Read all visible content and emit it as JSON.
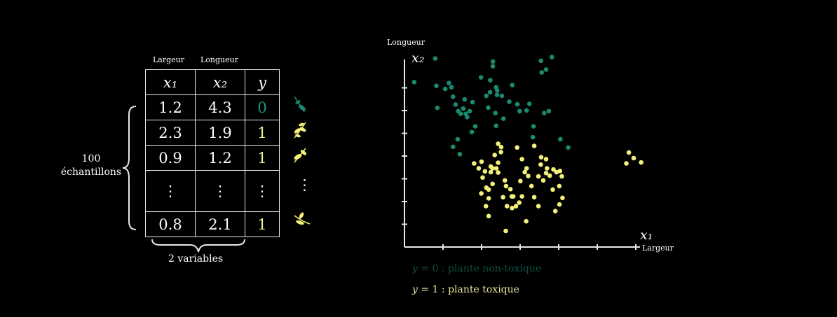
{
  "table": {
    "col_labels": [
      "Largeur",
      "Longueur"
    ],
    "headers": [
      "x₁",
      "x₂",
      "y"
    ],
    "rows": [
      [
        "1.2",
        "4.3",
        "0"
      ],
      [
        "2.3",
        "1.9",
        "1"
      ],
      [
        "0.9",
        "1.2",
        "1"
      ],
      [
        "⋮",
        "⋮",
        "⋮"
      ],
      [
        "0.8",
        "2.1",
        "1"
      ]
    ],
    "row_icons": [
      "leaf-dark-icon",
      "leaf-yellow-icon",
      "leaf-yellow-icon",
      "vertical-dots",
      "leaf-yellow-icon"
    ],
    "extra_dots": "⋮"
  },
  "samples_label": {
    "line1": "100",
    "line2": "échantillons"
  },
  "variables_label": "2 variables",
  "colors": {
    "class0": "#1a8a70",
    "class1": "#f4f07a",
    "axis": "#e8e8e8"
  },
  "chart_data": {
    "type": "scatter",
    "ylabel_word": "Longueur",
    "ylabel_symbol": "x₂",
    "xlabel_word": "Largeur",
    "xlabel_symbol": "x₁",
    "x_ticks": 6,
    "y_ticks": 7,
    "xlim": [
      0,
      10
    ],
    "ylim": [
      0,
      7.7
    ],
    "series": [
      {
        "points": [
          [
            0.42,
            6.98
          ],
          [
            1.33,
            7.98
          ],
          [
            1.38,
            6.82
          ],
          [
            1.42,
            5.89
          ],
          [
            1.76,
            6.69
          ],
          [
            1.92,
            6.94
          ],
          [
            2.03,
            6.76
          ],
          [
            2.1,
            6.36
          ],
          [
            2.21,
            6.03
          ],
          [
            2.32,
            5.75
          ],
          [
            2.43,
            5.64
          ],
          [
            2.54,
            5.86
          ],
          [
            2.6,
            6.25
          ],
          [
            2.65,
            5.64
          ],
          [
            2.71,
            5.5
          ],
          [
            2.82,
            5.75
          ],
          [
            2.94,
            6.13
          ],
          [
            3.06,
            5.11
          ],
          [
            2.3,
            4.56
          ],
          [
            2.1,
            4.24
          ],
          [
            2.39,
            3.93
          ],
          [
            2.91,
            4.87
          ],
          [
            3.31,
            7.18
          ],
          [
            3.71,
            7.06
          ],
          [
            3.82,
            7.65
          ],
          [
            3.7,
            6.55
          ],
          [
            3.54,
            6.4
          ],
          [
            3.62,
            5.9
          ],
          [
            3.93,
            5.67
          ],
          [
            4.0,
            6.44
          ],
          [
            4.01,
            6.63
          ],
          [
            4.21,
            6.4
          ],
          [
            4.28,
            5.43
          ],
          [
            3.96,
            5.13
          ],
          [
            3.96,
            6.76
          ],
          [
            3.82,
            7.85
          ],
          [
            4.53,
            6.15
          ],
          [
            4.66,
            6.85
          ],
          [
            4.88,
            6.04
          ],
          [
            4.98,
            5.75
          ],
          [
            5.28,
            5.78
          ],
          [
            5.4,
            6.06
          ],
          [
            5.58,
            5.11
          ],
          [
            5.55,
            4.65
          ],
          [
            5.9,
            7.88
          ],
          [
            5.93,
            7.39
          ],
          [
            6.04,
            5.67
          ],
          [
            6.24,
            5.75
          ],
          [
            6.12,
            7.51
          ],
          [
            6.37,
            8.04
          ],
          [
            6.74,
            4.56
          ],
          [
            7.08,
            4.21
          ]
        ]
      },
      {
        "points": [
          [
            3.01,
            3.54
          ],
          [
            3.33,
            3.61
          ],
          [
            3.38,
            2.94
          ],
          [
            3.32,
            2.27
          ],
          [
            3.54,
            2.51
          ],
          [
            3.64,
            2.43
          ],
          [
            3.73,
            3.17
          ],
          [
            3.81,
            2.67
          ],
          [
            3.81,
            3.33
          ],
          [
            3.9,
            3.89
          ],
          [
            4.05,
            3.57
          ],
          [
            3.52,
            1.73
          ],
          [
            3.64,
            1.31
          ],
          [
            3.73,
            3.41
          ],
          [
            3.97,
            3.33
          ],
          [
            4.05,
            4.37
          ],
          [
            4.17,
            4.02
          ],
          [
            4.26,
            2.11
          ],
          [
            4.34,
            2.82
          ],
          [
            4.39,
            2.58
          ],
          [
            4.43,
            1.73
          ],
          [
            4.65,
            1.65
          ],
          [
            4.82,
            1.73
          ],
          [
            4.7,
            2.14
          ],
          [
            4.96,
            1.88
          ],
          [
            5.08,
            3.72
          ],
          [
            5.2,
            3.17
          ],
          [
            5.08,
            2.14
          ],
          [
            5.28,
            3.33
          ],
          [
            5.35,
            3.01
          ],
          [
            5.49,
            2.58
          ],
          [
            5.61,
            2.11
          ],
          [
            5.79,
            2.99
          ],
          [
            5.79,
            1.73
          ],
          [
            5.89,
            3.49
          ],
          [
            6.0,
            2.82
          ],
          [
            6.16,
            3.33
          ],
          [
            6.12,
            3.72
          ],
          [
            6.28,
            3.02
          ],
          [
            6.44,
            3.28
          ],
          [
            6.41,
            2.43
          ],
          [
            6.57,
            3.17
          ],
          [
            6.72,
            3.22
          ],
          [
            6.8,
            2.99
          ],
          [
            6.7,
            1.8
          ],
          [
            6.83,
            2.08
          ],
          [
            4.38,
            0.68
          ],
          [
            4.87,
            4.21
          ],
          [
            5.61,
            4.28
          ],
          [
            4.18,
            4.23
          ],
          [
            3.21,
            3.33
          ],
          [
            3.48,
            3.2
          ],
          [
            5.91,
            3.8
          ],
          [
            4.05,
            3.15
          ],
          [
            4.58,
            2.45
          ],
          [
            6.69,
            2.58
          ],
          [
            5.01,
            2.79
          ],
          [
            3.64,
            2.06
          ],
          [
            6.52,
            1.52
          ],
          [
            5.26,
            1.09
          ],
          [
            4.64,
            2.14
          ],
          [
            6.12,
            3.13
          ]
        ]
      },
      {
        "points": [
          [
            9.7,
            4.0
          ],
          [
            9.91,
            3.76
          ],
          [
            10.23,
            3.58
          ],
          [
            9.59,
            3.54
          ]
        ]
      }
    ]
  },
  "legend": {
    "class0": {
      "symbol": "y",
      "text": " = 0 : plante non-toxique"
    },
    "class1": {
      "symbol": "y",
      "text": " = 1 : plante toxique"
    }
  }
}
